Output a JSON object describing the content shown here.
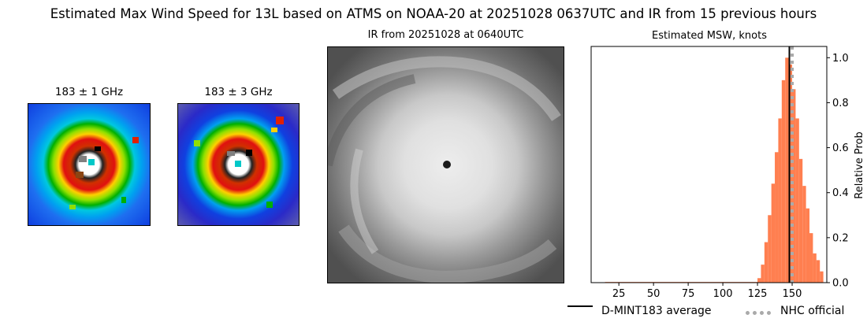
{
  "figure": {
    "title": "Estimated Max Wind Speed for 13L based on ATMS on NOAA-20 at 20251028 0637UTC and IR from 15 previous hours"
  },
  "panels": {
    "mw1_title": "183 ± 1 GHz",
    "mw2_title": "183 ± 3 GHz",
    "ir_title": "IR from 20251028 at 0640UTC"
  },
  "chart_data": {
    "type": "bar",
    "title": "Estimated MSW, knots",
    "xlabel": "",
    "ylabel": "Relative Prob",
    "xlim": [
      5,
      175
    ],
    "ylim": [
      0,
      1.05
    ],
    "x_ticks": [
      25,
      50,
      75,
      100,
      125,
      150
    ],
    "y_ticks": [
      0.0,
      0.2,
      0.4,
      0.6,
      0.8,
      1.0
    ],
    "y_axis_side": "right",
    "bar_color": "#ff7f50",
    "bin_width": 2.5,
    "bins": [
      {
        "x": 125,
        "value": 0.02
      },
      {
        "x": 127.5,
        "value": 0.08
      },
      {
        "x": 130,
        "value": 0.18
      },
      {
        "x": 132.5,
        "value": 0.3
      },
      {
        "x": 135,
        "value": 0.44
      },
      {
        "x": 137.5,
        "value": 0.58
      },
      {
        "x": 140,
        "value": 0.73
      },
      {
        "x": 142.5,
        "value": 0.9
      },
      {
        "x": 145,
        "value": 1.0
      },
      {
        "x": 147.5,
        "value": 0.97
      },
      {
        "x": 150,
        "value": 0.86
      },
      {
        "x": 152.5,
        "value": 0.73
      },
      {
        "x": 155,
        "value": 0.55
      },
      {
        "x": 157.5,
        "value": 0.43
      },
      {
        "x": 160,
        "value": 0.33
      },
      {
        "x": 162.5,
        "value": 0.22
      },
      {
        "x": 165,
        "value": 0.13
      },
      {
        "x": 167.5,
        "value": 0.1
      },
      {
        "x": 170,
        "value": 0.05
      }
    ],
    "low_tail": {
      "from": 15,
      "to": 125,
      "value": 0.003
    },
    "mean_line": {
      "name": "D-MINT183 average",
      "x": 148,
      "color": "#000000"
    },
    "official_line": {
      "name": "NHC official",
      "x": 150,
      "color": "#aaaaaa"
    },
    "legend_position": "bottom-right"
  }
}
